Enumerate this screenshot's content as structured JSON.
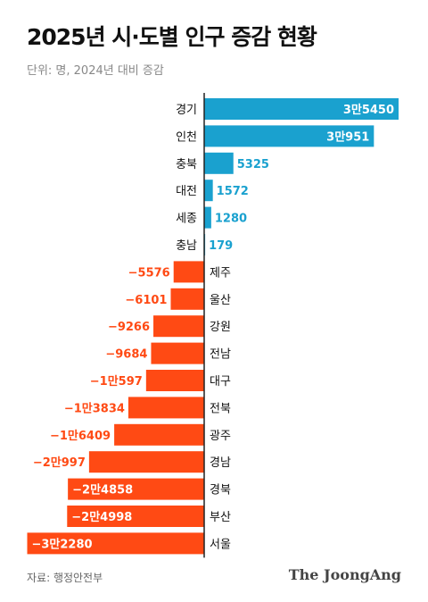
{
  "header": {
    "title": "2025년 시·도별 인구 증감 현황",
    "subtitle": "단위: 명, 2024년 대비 증감"
  },
  "footer": {
    "source": "자료: 행정안전부",
    "brand": "The JoongAng"
  },
  "colors": {
    "positive": "#1aa1cf",
    "negative": "#ff4a14",
    "axis": "#222222"
  },
  "chart_data": {
    "type": "bar",
    "orientation": "horizontal",
    "title": "2025년 시·도별 인구 증감 현황",
    "subtitle": "단위: 명, 2024년 대비 증감",
    "categories": [
      "경기",
      "인천",
      "충북",
      "대전",
      "세종",
      "충남",
      "제주",
      "울산",
      "강원",
      "전남",
      "대구",
      "전북",
      "광주",
      "경남",
      "경북",
      "부산",
      "서울"
    ],
    "values": [
      35450,
      30951,
      5325,
      1572,
      1280,
      179,
      -5576,
      -6101,
      -9266,
      -9684,
      -10597,
      -13834,
      -16409,
      -20997,
      -24858,
      -24998,
      -32280
    ],
    "data_labels": [
      "3만5450",
      "3만951",
      "5325",
      "1572",
      "1280",
      "179",
      "−5576",
      "−6101",
      "−9266",
      "−9684",
      "−1만597",
      "−1만3834",
      "−1만6409",
      "−2만997",
      "−2만4858",
      "−2만4998",
      "−3만2280"
    ],
    "grid": false,
    "legend": "none"
  }
}
